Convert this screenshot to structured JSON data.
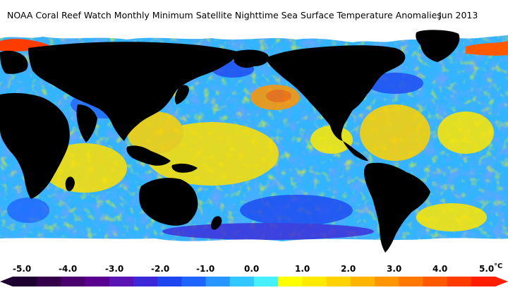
{
  "title": "NOAA Coral Reef Watch Monthly Minimum Satellite Nighttime Sea Surface Temperature Anomalies",
  "date": "Jun 2013",
  "colorbar": {
    "unit": "°C",
    "ticks": [
      "-5.0",
      "-4.0",
      "-3.0",
      "-2.0",
      "-1.0",
      "0.0",
      "1.0",
      "2.0",
      "3.0",
      "4.0",
      "5.0"
    ],
    "colors": [
      "#1e0030",
      "#35004a",
      "#4c006e",
      "#5a0090",
      "#5a14b4",
      "#3c28d8",
      "#1e46f0",
      "#1e64ff",
      "#2896ff",
      "#32c8ff",
      "#46f0ff",
      "#ffff00",
      "#ffea00",
      "#ffd200",
      "#ffb400",
      "#ff9600",
      "#ff7800",
      "#ff5a00",
      "#ff3c00",
      "#ff1e00"
    ]
  },
  "colors": {
    "land": "#000000",
    "ice": "#ffffff",
    "ocean_cool": "#2a8cff",
    "ocean_neutral": "#32c8ff",
    "ocean_warm": "#ffe600"
  }
}
